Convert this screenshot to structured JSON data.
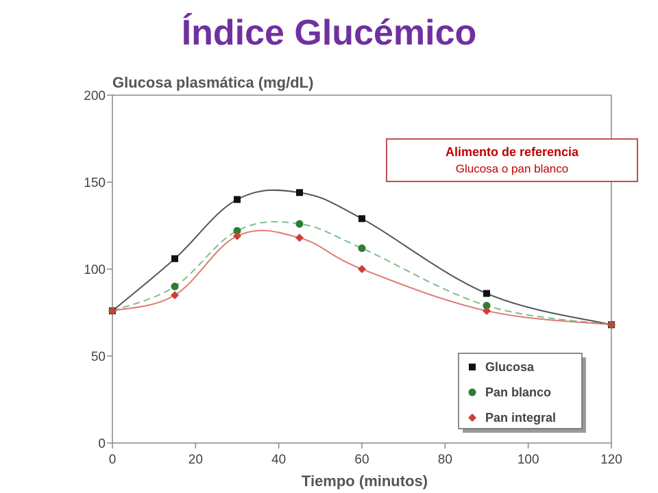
{
  "colors": {
    "title": "#7030a0",
    "accent": "#c00000",
    "glucosa": "#111111",
    "pan_blanco": "#2e7d32",
    "pan_integral": "#c9403a",
    "line_glucosa": "#555555",
    "line_pan_blanco": "#7fbf8a",
    "line_pan_integral": "#e07a72"
  },
  "page": {
    "title": "Índice Glucémico"
  },
  "reference_box": {
    "title": "Alimento de referencia",
    "subtitle": "Glucosa o pan blanco"
  },
  "chart_data": {
    "type": "line",
    "ylabel": "Glucosa plasmática (mg/dL)",
    "xlabel": "Tiempo (minutos)",
    "xlim": [
      0,
      120
    ],
    "ylim": [
      0,
      200
    ],
    "xticks": [
      0,
      20,
      40,
      60,
      80,
      100,
      120
    ],
    "yticks": [
      0,
      50,
      100,
      150,
      200
    ],
    "grid": false,
    "legend_position": "bottom-right",
    "x": [
      0,
      15,
      30,
      45,
      60,
      90,
      120
    ],
    "series": [
      {
        "name": "Glucosa",
        "marker": "square",
        "line": "solid",
        "values": [
          76,
          106,
          140,
          144,
          129,
          86,
          68
        ]
      },
      {
        "name": "Pan blanco",
        "marker": "circle",
        "line": "dashed",
        "values": [
          76,
          90,
          122,
          126,
          112,
          79,
          68
        ]
      },
      {
        "name": "Pan integral",
        "marker": "diamond",
        "line": "solid",
        "values": [
          76,
          85,
          119,
          118,
          100,
          76,
          68
        ]
      }
    ]
  }
}
